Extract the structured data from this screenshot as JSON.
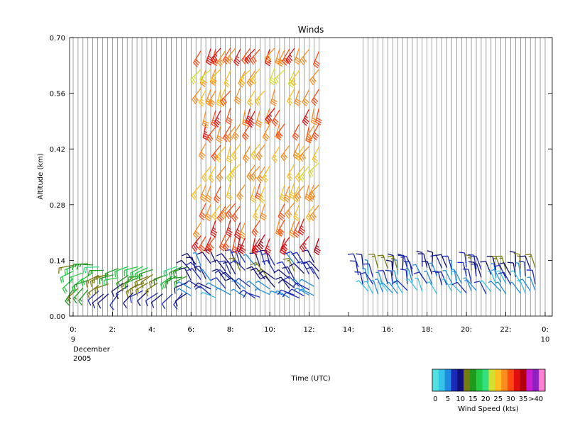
{
  "chart_data": {
    "type": "wind-barb time-height plot",
    "title": "Winds",
    "xlabel": "Time (UTC)",
    "ylabel": "Altitude (km)",
    "date_line_1": "December",
    "date_line_2": "2005",
    "xlim": [
      0,
      24
    ],
    "ylim": [
      0.0,
      0.7
    ],
    "x_ticks": [
      {
        "t": 0,
        "line1": "0:",
        "line2": "9"
      },
      {
        "t": 2,
        "line1": "2:",
        "line2": ""
      },
      {
        "t": 4,
        "line1": "4:",
        "line2": ""
      },
      {
        "t": 6,
        "line1": "6:",
        "line2": ""
      },
      {
        "t": 8,
        "line1": "8:",
        "line2": ""
      },
      {
        "t": 10,
        "line1": "10:",
        "line2": ""
      },
      {
        "t": 12,
        "line1": "12:",
        "line2": ""
      },
      {
        "t": 14,
        "line1": "14:",
        "line2": ""
      },
      {
        "t": 16,
        "line1": "16:",
        "line2": ""
      },
      {
        "t": 18,
        "line1": "18:",
        "line2": ""
      },
      {
        "t": 20,
        "line1": "20:",
        "line2": ""
      },
      {
        "t": 22,
        "line1": "22:",
        "line2": ""
      },
      {
        "t": 24,
        "line1": "0:",
        "line2": "10"
      }
    ],
    "y_ticks": [
      {
        "v": 0.0,
        "label": "0.00"
      },
      {
        "v": 0.14,
        "label": "0.14"
      },
      {
        "v": 0.28,
        "label": "0.28"
      },
      {
        "v": 0.42,
        "label": "0.42"
      },
      {
        "v": 0.56,
        "label": "0.56"
      },
      {
        "v": 0.7,
        "label": "0.70"
      }
    ],
    "profile_interval_hours": 0.25,
    "data_gap_hours": [
      12.6,
      14.6
    ],
    "colorbar": {
      "label": "Wind Speed (kts)",
      "tick_labels": [
        "0",
        "5",
        "10",
        "15",
        "20",
        "25",
        "30",
        "35",
        ">40"
      ],
      "colors": [
        "#55e0e0",
        "#33c4e8",
        "#1e8ce0",
        "#1a2ab8",
        "#10107a",
        "#7a7a10",
        "#1e9a1e",
        "#22cc44",
        "#33e080",
        "#d4e030",
        "#ffc020",
        "#ff8c1e",
        "#ff4a14",
        "#e01010",
        "#b00010",
        "#c81ed0",
        "#9020c0",
        "#ff80d0"
      ]
    },
    "series": [
      {
        "altitudes": [
          0.07,
          0.09,
          0.11,
          0.13
        ],
        "speeds": [
          17,
          19,
          20,
          16
        ],
        "dirs": [
          225,
          240,
          250,
          260
        ],
        "t_range": [
          0,
          1.2
        ]
      },
      {
        "altitudes": [
          0.06,
          0.08,
          0.1,
          0.12
        ],
        "speeds": [
          10,
          13,
          16,
          18
        ],
        "dirs": [
          230,
          240,
          250,
          255
        ],
        "t_range": [
          1.3,
          6.0
        ]
      },
      {
        "altitudes": [
          0.05,
          0.07,
          0.09,
          0.11,
          0.13
        ],
        "speeds": [
          7,
          9,
          10,
          11,
          10
        ],
        "dirs": [
          300,
          310,
          320,
          330,
          335
        ],
        "t_range": [
          6.0,
          12.5
        ]
      },
      {
        "altitudes": [
          0.2,
          0.24,
          0.28,
          0.33,
          0.38,
          0.43,
          0.48,
          0.52,
          0.57,
          0.62,
          0.67
        ],
        "speeds": [
          33,
          31,
          29,
          28,
          27,
          29,
          30,
          31,
          28,
          26,
          31
        ],
        "dirs": [
          205,
          205,
          210,
          210,
          215,
          210,
          205,
          205,
          210,
          215,
          210
        ],
        "t_range": [
          6.5,
          12.5
        ]
      },
      {
        "altitudes": [
          0.06,
          0.08,
          0.1,
          0.12
        ],
        "speeds": [
          5,
          7,
          9,
          11
        ],
        "dirs": [
          330,
          340,
          345,
          350
        ],
        "t_range": [
          14.5,
          23.5
        ]
      }
    ]
  }
}
